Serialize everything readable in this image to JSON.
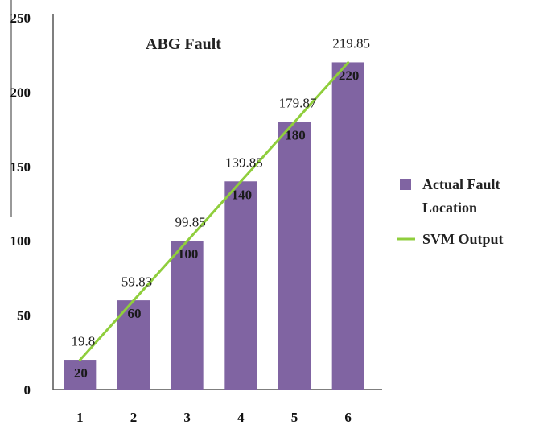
{
  "chart_data": {
    "type": "bar",
    "title": "ABG Fault",
    "categories": [
      "1",
      "2",
      "3",
      "4",
      "5",
      "6"
    ],
    "ylim": [
      0,
      250
    ],
    "yticks": [
      "0",
      "50",
      "100",
      "150",
      "200",
      "250"
    ],
    "series": [
      {
        "name": "Actual Fault Location",
        "type": "bar",
        "color": "#8064a2",
        "values": [
          20,
          60,
          100,
          140,
          180,
          220
        ],
        "labels": [
          "20",
          "60",
          "100",
          "140",
          "180",
          "220"
        ]
      },
      {
        "name": "SVM Output",
        "type": "line",
        "color": "#8fce3c",
        "values": [
          19.8,
          59.83,
          99.85,
          139.85,
          179.87,
          219.85
        ],
        "labels": [
          "19.8",
          "59.83",
          "99.85",
          "139.85",
          "179.87",
          "219.85"
        ]
      }
    ],
    "legend": {
      "position": "right",
      "items": [
        {
          "line1": "Actual Fault",
          "line2": "Location"
        },
        {
          "line1": "SVM Output",
          "line2": ""
        }
      ]
    }
  }
}
